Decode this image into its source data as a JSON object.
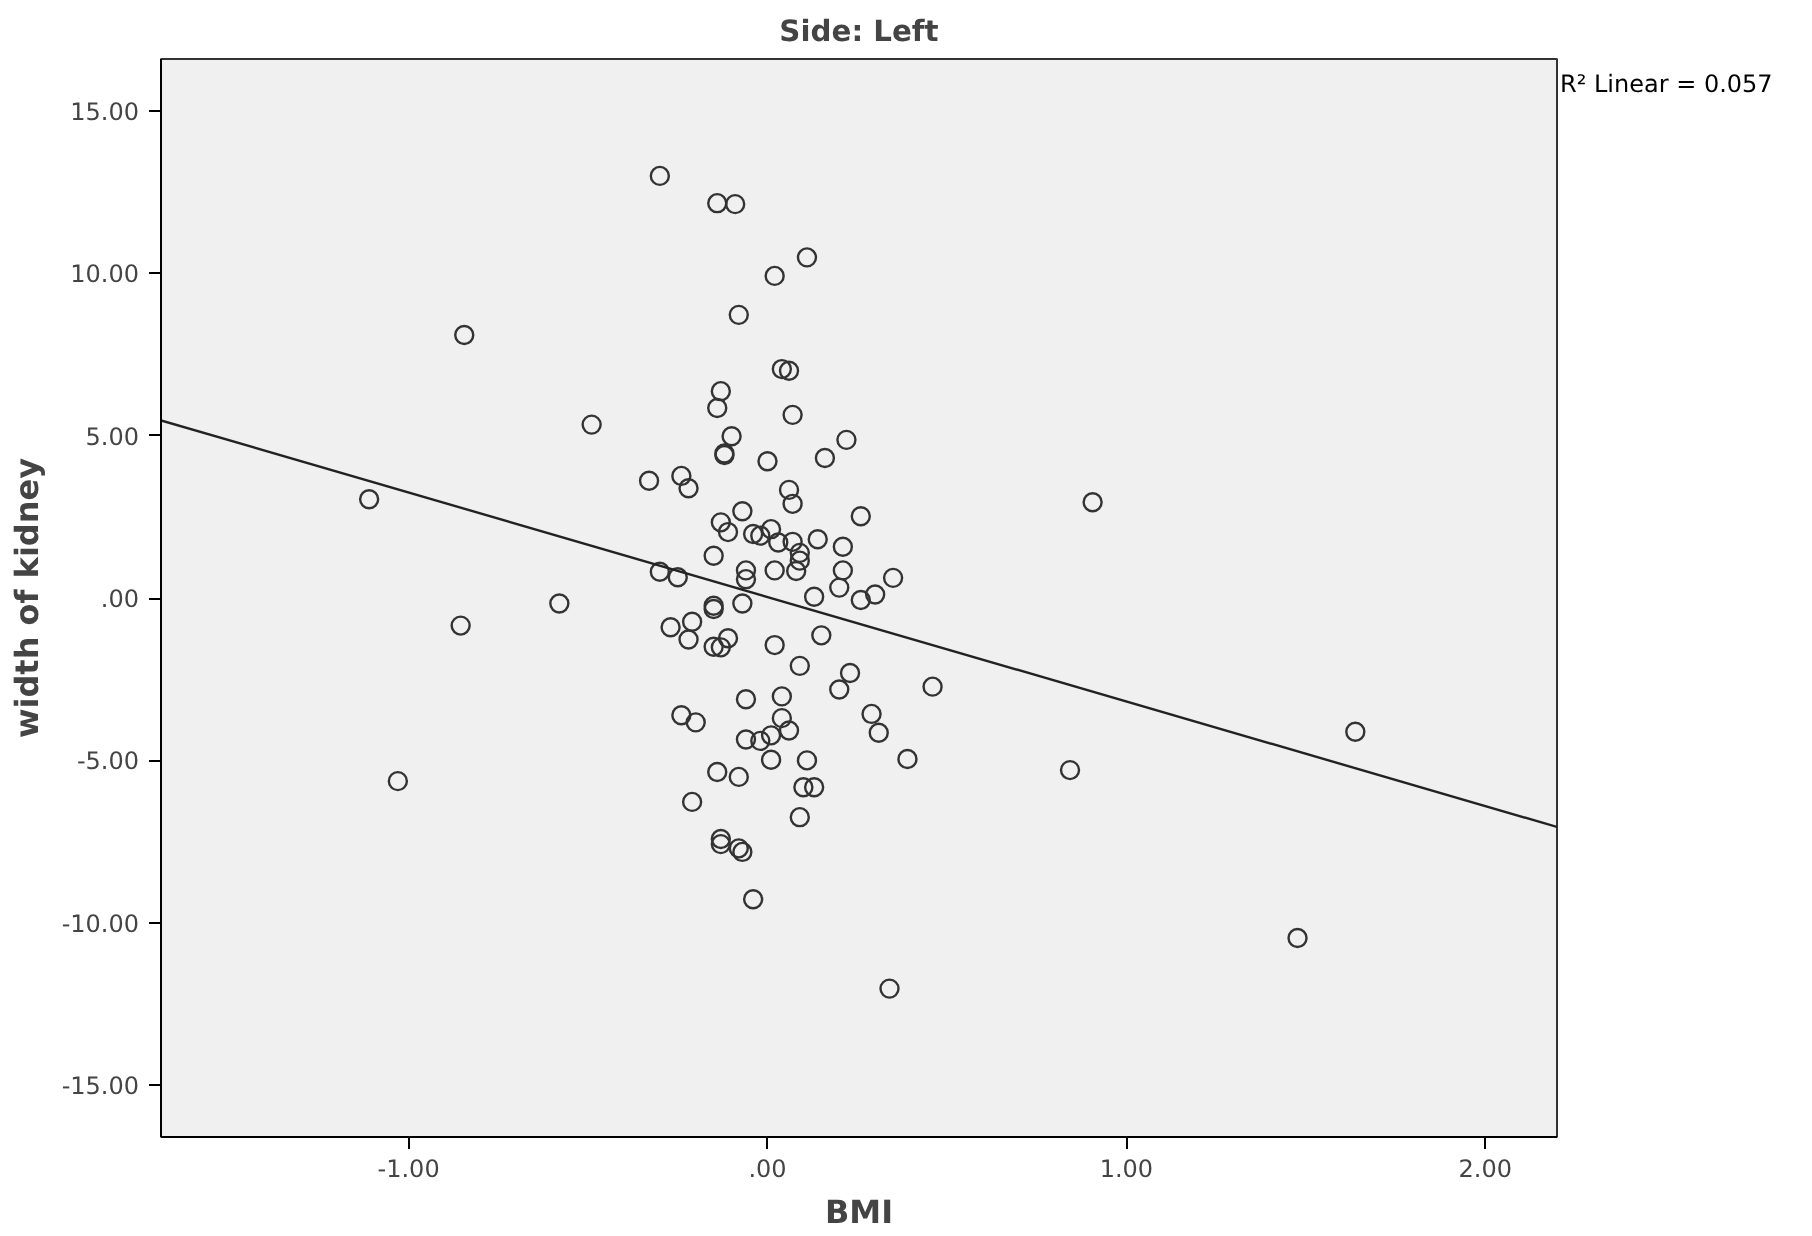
{
  "chart_data": {
    "type": "scatter",
    "title": "Side: Left",
    "xlabel": "BMI",
    "ylabel": "width of kidney",
    "annotations": [
      "R² Linear = 0.057"
    ],
    "xlim": [
      -1.69,
      2.2
    ],
    "ylim": [
      -16.6,
      16.6
    ],
    "xticks": [
      {
        "value": -1,
        "label": "-1.00"
      },
      {
        "value": 0,
        "label": ".00"
      },
      {
        "value": 1,
        "label": "1.00"
      },
      {
        "value": 2,
        "label": "2.00"
      }
    ],
    "yticks": [
      {
        "value": -15,
        "label": "-15.00"
      },
      {
        "value": -10,
        "label": "-10.00"
      },
      {
        "value": -5,
        "label": "-5.00"
      },
      {
        "value": 0,
        "label": ".00"
      },
      {
        "value": 5,
        "label": "5.00"
      },
      {
        "value": 10,
        "label": "10.00"
      },
      {
        "value": 15,
        "label": "15.00"
      }
    ],
    "grid": false,
    "series": [
      {
        "color": "#333333",
        "marker": "circle",
        "x": [
          -0.3,
          -0.14,
          -0.09,
          0.11,
          0.02,
          -0.08,
          0.04,
          0.06,
          -0.13,
          -0.14,
          -0.49,
          0.07,
          -0.1,
          -0.12,
          -0.12,
          0.22,
          0.16,
          0.0,
          -0.33,
          -0.24,
          -0.22,
          0.06,
          0.07,
          0.26,
          -0.07,
          -0.13,
          -0.11,
          -0.04,
          -0.02,
          0.01,
          0.03,
          0.07,
          0.14,
          0.21,
          0.09,
          0.09,
          -0.15,
          -0.3,
          -0.25,
          -0.06,
          -0.06,
          0.02,
          0.08,
          0.21,
          0.2,
          0.35,
          -0.58,
          -0.15,
          -0.07,
          0.13,
          0.26,
          0.3,
          -0.27,
          -0.21,
          -0.15,
          -0.22,
          -0.15,
          -0.11,
          -0.13,
          0.02,
          0.15,
          0.09,
          0.23,
          0.2,
          0.46,
          -0.06,
          0.04,
          -0.24,
          -0.2,
          0.04,
          0.06,
          0.29,
          0.31,
          -0.06,
          -0.02,
          0.01,
          0.01,
          0.11,
          0.39,
          -0.14,
          -0.08,
          0.1,
          0.13,
          -0.21,
          0.09,
          -0.13,
          -0.13,
          -0.08,
          -0.07,
          -0.04,
          0.34,
          -0.845,
          -1.11,
          -0.855,
          -1.03,
          0.906,
          0.843,
          1.638,
          1.477
        ],
        "values": [
          13.0,
          12.16,
          12.13,
          10.49,
          9.92,
          8.72,
          7.05,
          7.0,
          6.37,
          5.85,
          5.34,
          5.64,
          4.98,
          4.45,
          4.4,
          4.87,
          4.31,
          4.21,
          3.61,
          3.76,
          3.38,
          3.33,
          2.9,
          2.52,
          2.67,
          2.33,
          2.03,
          1.97,
          1.92,
          2.12,
          1.71,
          1.73,
          1.81,
          1.58,
          1.39,
          1.15,
          1.3,
          0.81,
          0.64,
          0.85,
          0.58,
          0.85,
          0.83,
          0.85,
          0.32,
          0.62,
          -0.17,
          -0.24,
          -0.17,
          0.04,
          -0.06,
          0.11,
          -0.9,
          -0.73,
          -0.34,
          -1.28,
          -1.5,
          -1.24,
          -1.52,
          -1.45,
          -1.15,
          -2.09,
          -2.31,
          -2.82,
          -2.73,
          -3.12,
          -3.03,
          -3.61,
          -3.83,
          -3.7,
          -4.08,
          -3.57,
          -4.15,
          -4.36,
          -4.4,
          -4.23,
          -4.98,
          -5.0,
          -4.96,
          -5.36,
          -5.51,
          -5.83,
          -5.83,
          -6.28,
          -6.75,
          -7.42,
          -7.58,
          -7.71,
          -7.82,
          -9.28,
          -12.03,
          8.1,
          3.04,
          -0.85,
          -5.64,
          2.95,
          -5.3,
          -4.12,
          -10.47
        ]
      },
      {
        "type": "line",
        "color": "#222222",
        "marker": "none",
        "line_style": "solid",
        "x": [
          -1.69,
          2.2
        ],
        "values": [
          5.47,
          -7.05
        ]
      }
    ]
  }
}
